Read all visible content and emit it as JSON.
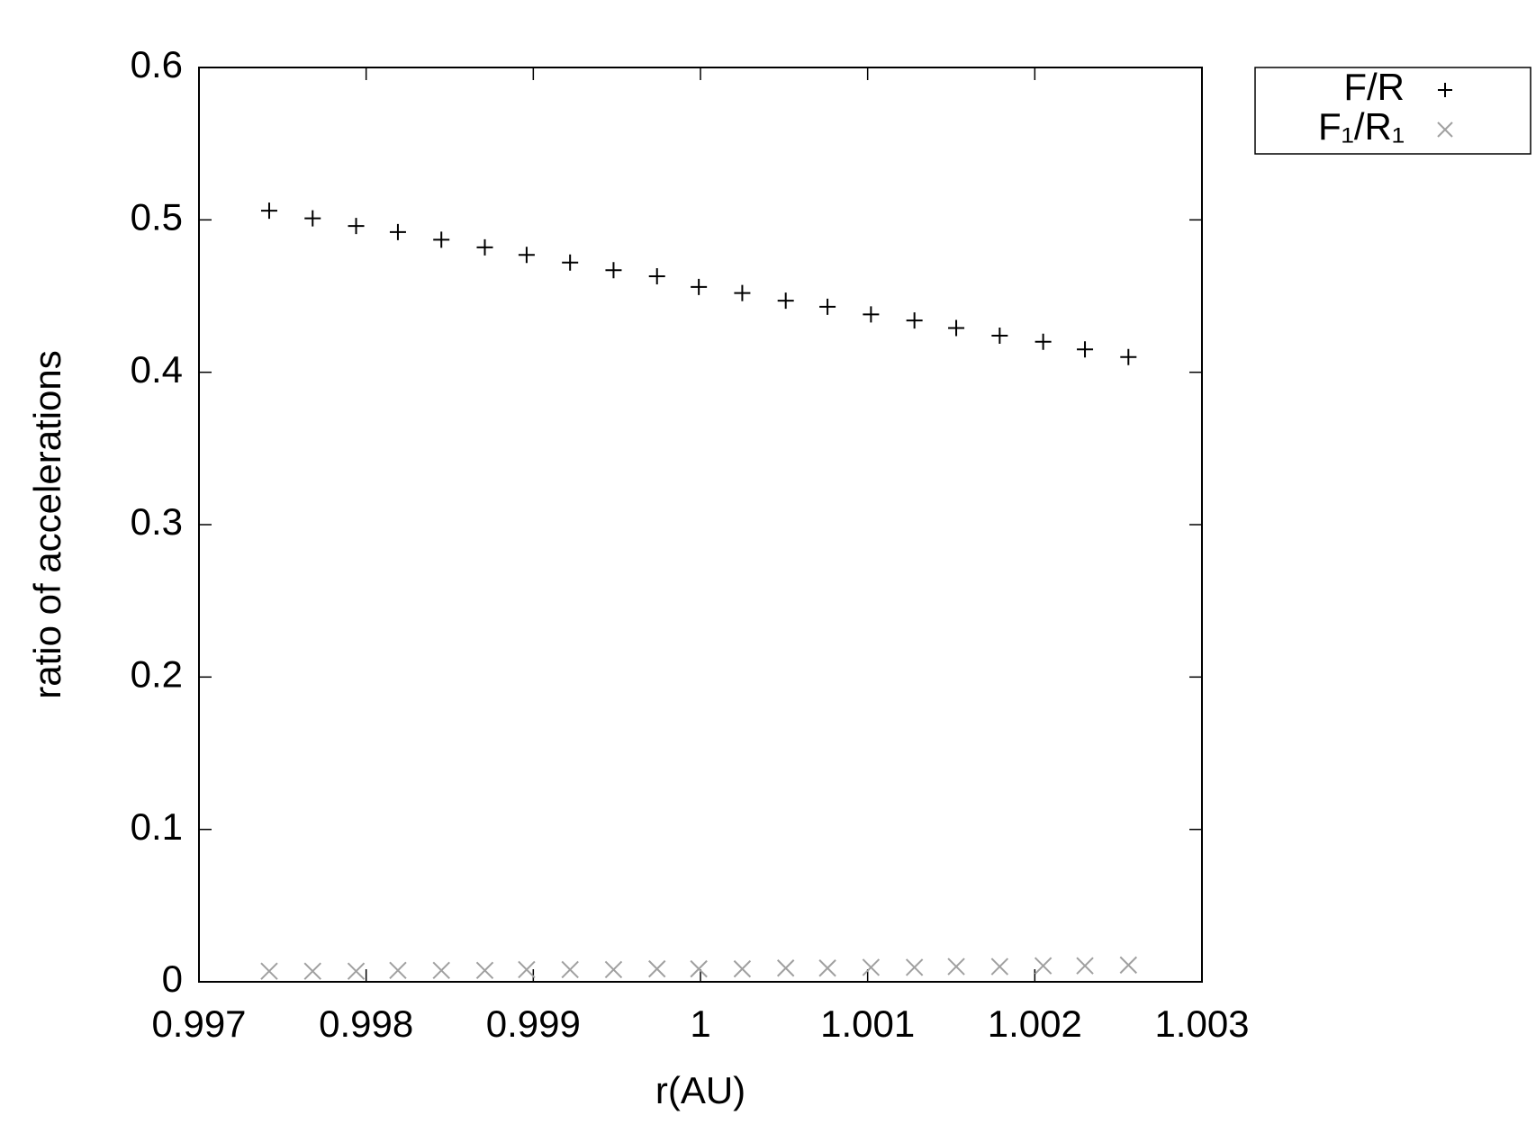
{
  "chart_data": {
    "type": "scatter",
    "xlabel": "r(AU)",
    "ylabel": "ratio of accelerations",
    "xlim": [
      0.997,
      1.003
    ],
    "xticks": [
      0.997,
      0.998,
      0.999,
      1,
      1.001,
      1.002,
      1.003
    ],
    "ylim": [
      0,
      0.6
    ],
    "yticks": [
      0,
      0.1,
      0.2,
      0.3,
      0.4,
      0.5,
      0.6
    ],
    "grid": false,
    "legend": "outside-top-right",
    "x": [
      0.99742,
      0.99768,
      0.99794,
      0.99819,
      0.99845,
      0.99871,
      0.99896,
      0.99922,
      0.99948,
      0.99974,
      0.99999,
      1.00025,
      1.00051,
      1.00076,
      1.00102,
      1.00128,
      1.00153,
      1.00179,
      1.00205,
      1.0023,
      1.00256
    ],
    "series": [
      {
        "name": "F/R",
        "color": "#000000",
        "marker": "plus",
        "values": [
          0.506,
          0.501,
          0.496,
          0.492,
          0.487,
          0.482,
          0.477,
          0.472,
          0.467,
          0.463,
          0.456,
          0.452,
          0.447,
          0.443,
          0.438,
          0.434,
          0.429,
          0.424,
          0.42,
          0.415,
          0.41
        ]
      },
      {
        "name": "F₁/R₁",
        "color": "#a0a0a0",
        "marker": "cross",
        "values": [
          0.007,
          0.007,
          0.007,
          0.0075,
          0.0075,
          0.0075,
          0.008,
          0.008,
          0.008,
          0.0085,
          0.0085,
          0.0085,
          0.009,
          0.009,
          0.0095,
          0.0095,
          0.01,
          0.01,
          0.0105,
          0.0105,
          0.011
        ]
      }
    ]
  }
}
